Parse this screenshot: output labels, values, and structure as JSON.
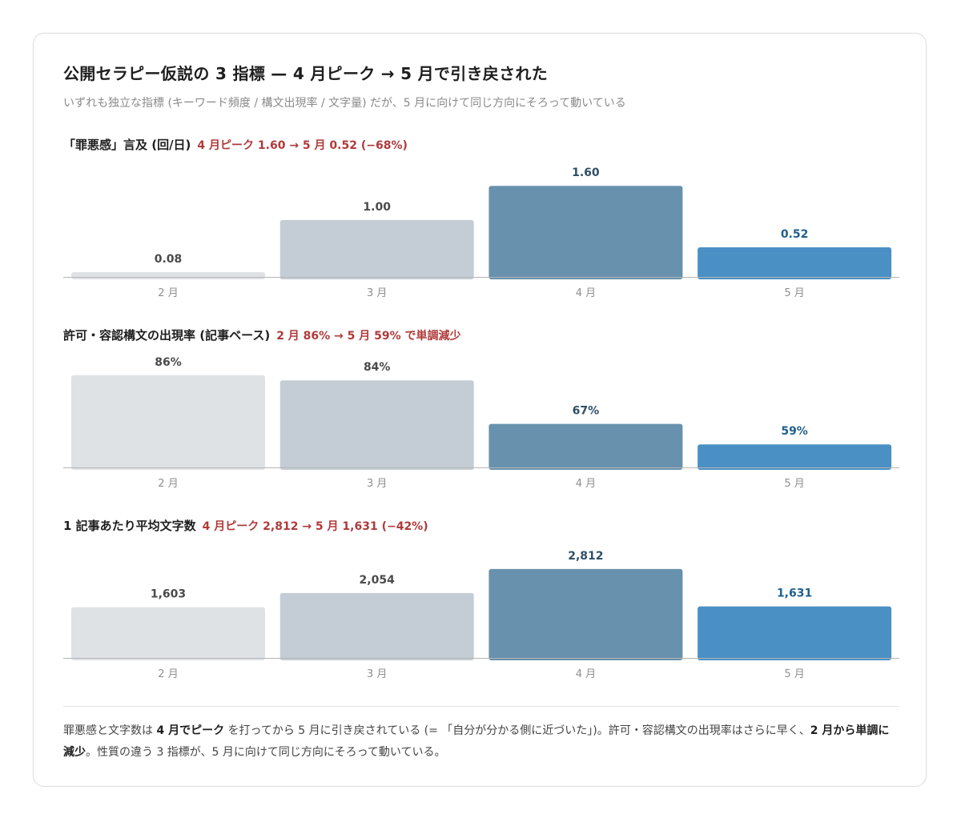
{
  "header": {
    "title": "公開セラピー仮説の 3 指標 — 4 月ピーク → 5 月で引き戻された",
    "subtitle": "いずれも独立な指標 (キーワード頻度 / 構文出現率 / 文字量) だが、5 月に向けて同じ方向にそろって動いている"
  },
  "colors": {
    "feb": "#dfe2e5",
    "mar": "#c4cdd5",
    "apr": "#6891ad",
    "may": "#4a90c4",
    "note": "#b03a3a",
    "axis": "#b5b5b5"
  },
  "sections": [
    {
      "title": "「罪悪感」言及 (回/日)",
      "note": "4 月ピーク 1.60 → 5 月 0.52 (−68%)"
    },
    {
      "title": "許可・容認構文の出現率 (記事ベース)",
      "note": "2 月 86% → 5 月 59% で単調減少"
    },
    {
      "title": "1 記事あたり平均文字数",
      "note": "4 月ピーク 2,812 → 5 月 1,631 (−42%)"
    }
  ],
  "chart_data": [
    {
      "type": "bar",
      "title": "「罪悪感」言及 (回/日)",
      "categories": [
        "2 月",
        "3 月",
        "4 月",
        "5 月"
      ],
      "values": [
        0.08,
        1.0,
        1.6,
        0.52
      ],
      "labels": [
        "0.08",
        "1.00",
        "1.60",
        "0.52"
      ],
      "ylim": [
        0,
        1.8
      ]
    },
    {
      "type": "bar",
      "title": "許可・容認構文の出現率 (記事ベース)",
      "categories": [
        "2 月",
        "3 月",
        "4 月",
        "5 月"
      ],
      "values": [
        86,
        84,
        67,
        59
      ],
      "labels": [
        "86%",
        "84%",
        "67%",
        "59%"
      ],
      "ylim": [
        50,
        90
      ]
    },
    {
      "type": "bar",
      "title": "1 記事あたり平均文字数",
      "categories": [
        "2 月",
        "3 月",
        "4 月",
        "5 月"
      ],
      "values": [
        1603,
        2054,
        2812,
        1631
      ],
      "labels": [
        "1,603",
        "2,054",
        "2,812",
        "1,631"
      ],
      "ylim": [
        0,
        3240
      ]
    }
  ],
  "footer": {
    "p1": "罪悪感と文字数は ",
    "b1": "4 月でピーク",
    "p2": " を打ってから 5 月に引き戻されている (= 「自分が分かる側に近づいた」)。許可・容認構文の出現率はさらに早く、",
    "b2": "2 月から単調に減少",
    "p3": "。性質の違う 3 指標が、5 月に向けて同じ方向にそろって動いている。"
  }
}
